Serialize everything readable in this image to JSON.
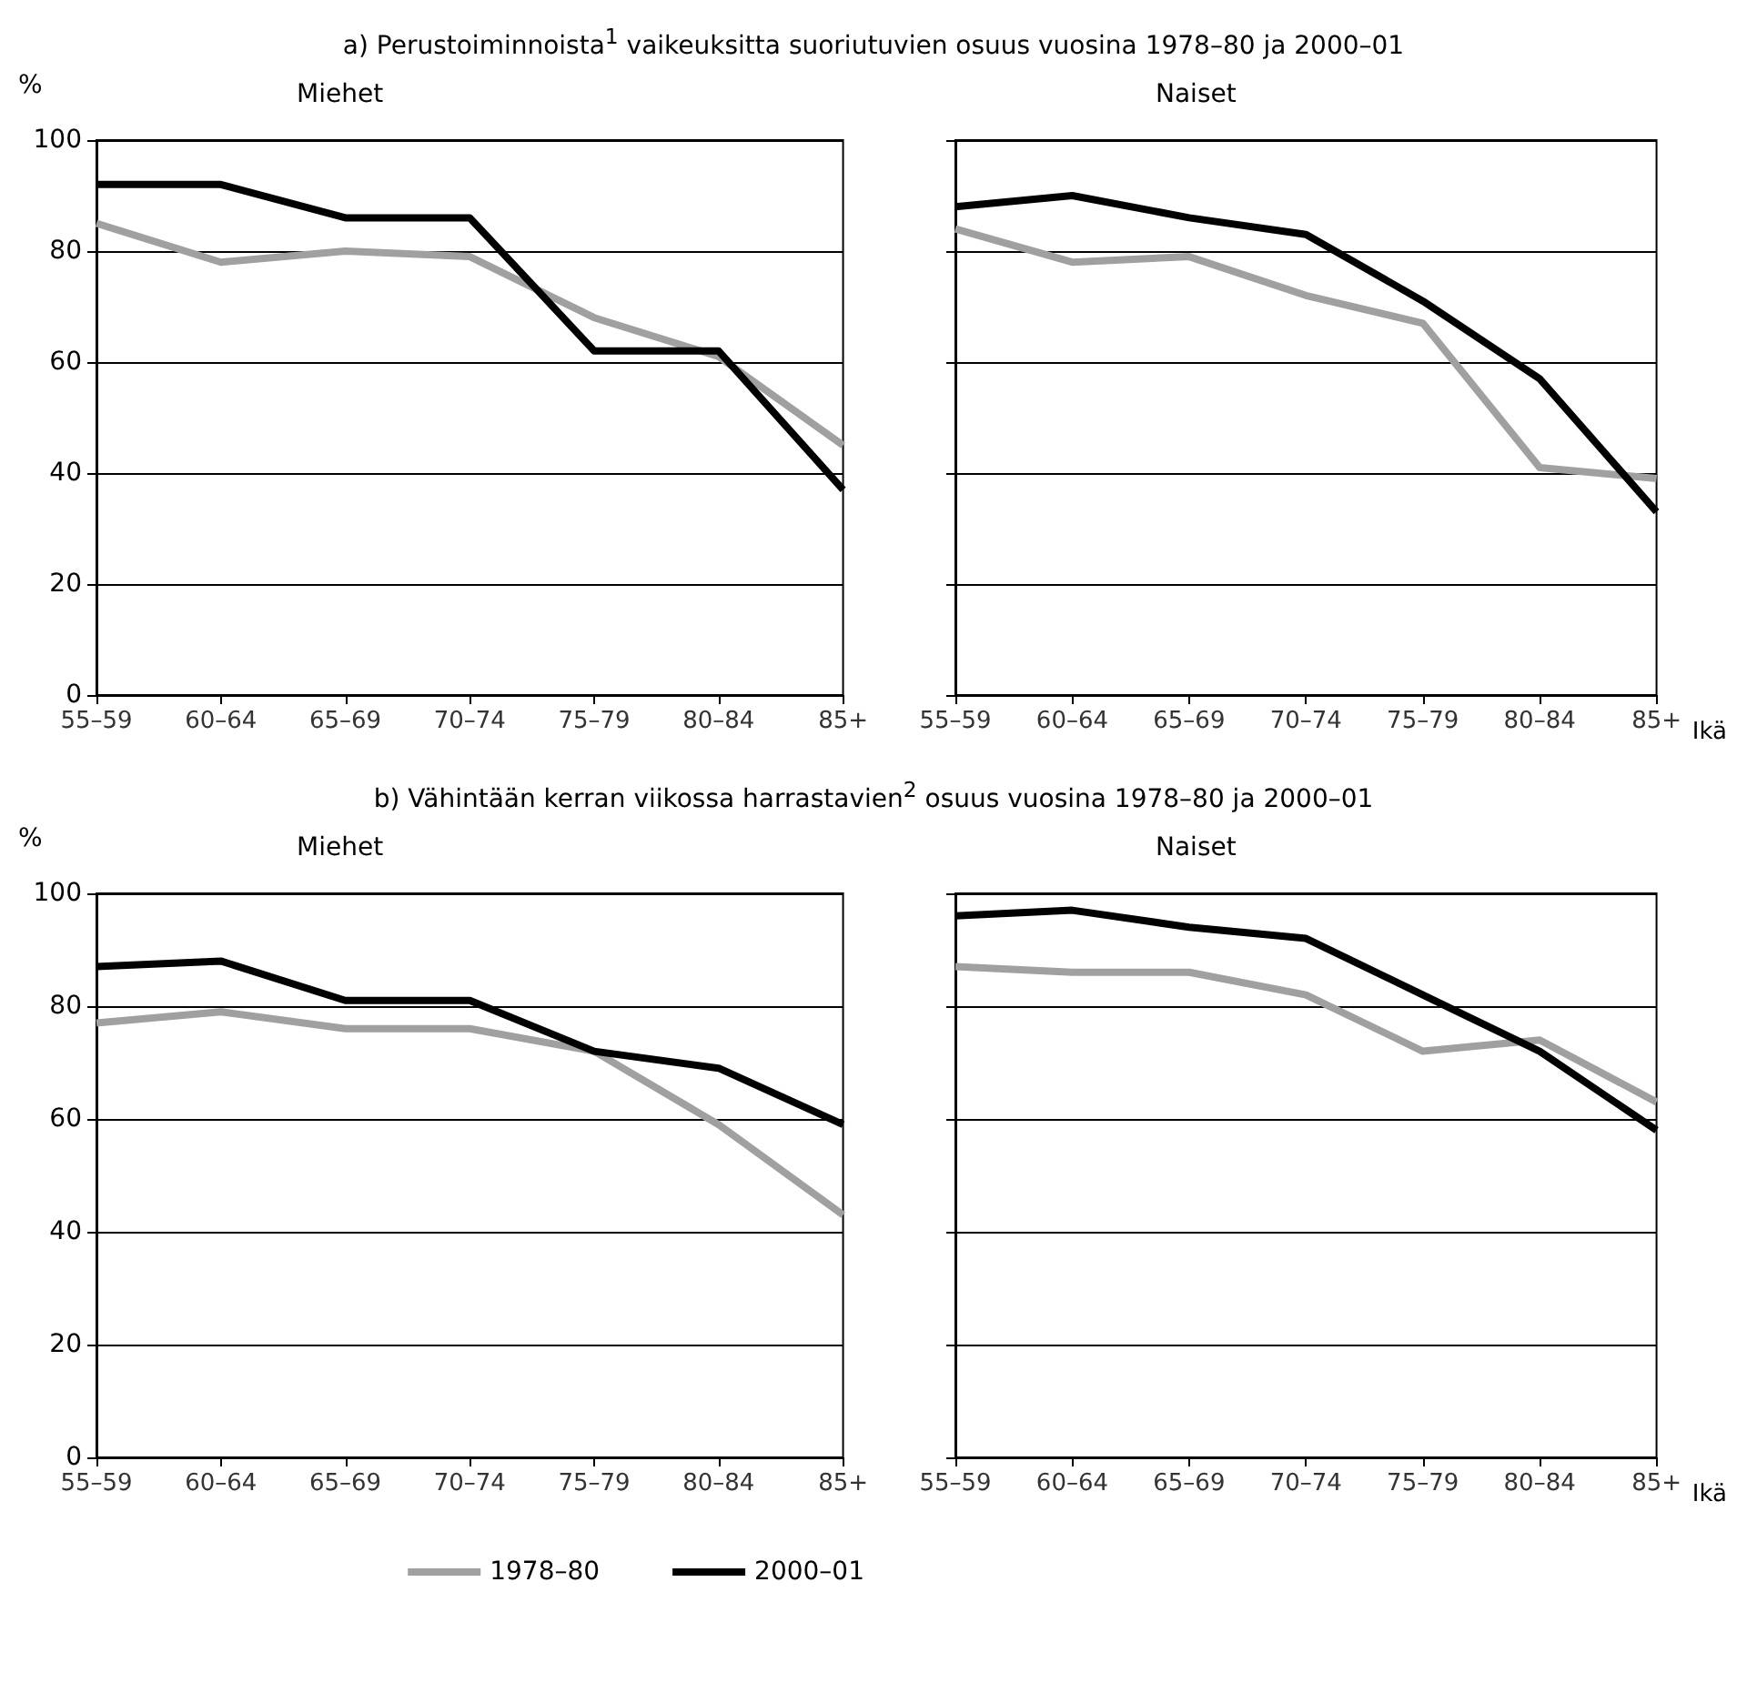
{
  "chart_data": [
    {
      "type": "line",
      "title": "a) Perustoiminnoista$^{1}$ vaikeuksitta suoriutuvien osuus vuosina 1978–80 ja 2000–01",
      "subtitle": "Miehet",
      "ylabel": "%",
      "categories": [
        "55–59",
        "60–64",
        "65–69",
        "70–74",
        "75–79",
        "80–84",
        "85+"
      ],
      "series": [
        {
          "color": "#a0a0a0",
          "values": [
            85,
            78,
            80,
            79,
            68,
            61,
            45
          ]
        },
        {
          "color": "#000000",
          "values": [
            92,
            92,
            86,
            86,
            62,
            62,
            37
          ]
        }
      ],
      "ylim": [
        0,
        100
      ],
      "yticks": [
        0,
        20,
        40,
        60,
        80,
        100
      ],
      "grid": "y",
      "legend": false,
      "marker": "none",
      "line_style": "solid"
    },
    {
      "type": "line",
      "subtitle": "Naiset",
      "xlabel": "Ikä",
      "categories": [
        "55–59",
        "60–64",
        "65–69",
        "70–74",
        "75–79",
        "80–84",
        "85+"
      ],
      "series": [
        {
          "color": "#a0a0a0",
          "values": [
            84,
            78,
            79,
            72,
            67,
            41,
            39
          ]
        },
        {
          "color": "#000000",
          "values": [
            88,
            90,
            86,
            83,
            71,
            57,
            33
          ]
        }
      ],
      "ylim": [
        0,
        100
      ],
      "yticks": [
        0,
        20,
        40,
        60,
        80,
        100
      ],
      "grid": "y",
      "legend": false,
      "marker": "none",
      "line_style": "solid",
      "tick_labels": "x"
    },
    {
      "type": "line",
      "title": "b) Vähintään kerran viikossa harrastavien$^{2}$ osuus vuosina 1978–80 ja 2000–01",
      "subtitle": "Miehet",
      "ylabel": "%",
      "categories": [
        "55–59",
        "60–64",
        "65–69",
        "70–74",
        "75–79",
        "80–84",
        "85+"
      ],
      "series": [
        {
          "name": "1978–80",
          "color": "#a0a0a0",
          "values": [
            77,
            79,
            76,
            76,
            72,
            59,
            43
          ]
        },
        {
          "name": "2000–01",
          "color": "#000000",
          "values": [
            87,
            88,
            81,
            81,
            72,
            69,
            59
          ]
        }
      ],
      "ylim": [
        0,
        100
      ],
      "yticks": [
        0,
        20,
        40,
        60,
        80,
        100
      ],
      "grid": "y",
      "legend": "bottom",
      "marker": "none",
      "line_style": "solid"
    },
    {
      "type": "line",
      "subtitle": "Naiset",
      "xlabel": "Ikä",
      "categories": [
        "55–59",
        "60–64",
        "65–69",
        "70–74",
        "75–79",
        "80–84",
        "85+"
      ],
      "series": [
        {
          "color": "#a0a0a0",
          "values": [
            87,
            86,
            86,
            82,
            72,
            74,
            63
          ]
        },
        {
          "color": "#000000",
          "values": [
            96,
            97,
            94,
            92,
            82,
            72,
            58
          ]
        }
      ],
      "ylim": [
        0,
        100
      ],
      "yticks": [
        0,
        20,
        40,
        60,
        80,
        100
      ],
      "grid": "y",
      "legend": false,
      "marker": "none",
      "line_style": "solid",
      "tick_labels": "x"
    }
  ]
}
